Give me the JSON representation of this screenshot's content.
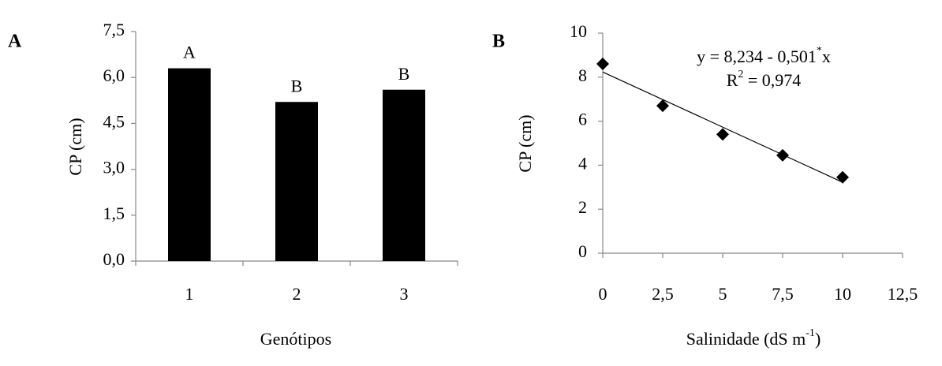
{
  "chart_data": [
    {
      "type": "bar",
      "panel_label": "A",
      "categories": [
        "1",
        "2",
        "3"
      ],
      "values": [
        6.3,
        5.2,
        5.6
      ],
      "color": "#000000",
      "letters": [
        "A",
        "B",
        "B"
      ],
      "y_label": "CP (cm)",
      "x_label": "Genótipos",
      "ylim": [
        0,
        7.5
      ],
      "yticks": [
        {
          "value": 0,
          "label": "0,0"
        },
        {
          "value": 1.5,
          "label": "1,5"
        },
        {
          "value": 3,
          "label": "3,0"
        },
        {
          "value": 4.5,
          "label": "4,5"
        },
        {
          "value": 6,
          "label": "6,0"
        },
        {
          "value": 7.5,
          "label": "7,5"
        }
      ]
    },
    {
      "type": "scatter",
      "panel_label": "B",
      "x": [
        0,
        2.5,
        5,
        7.5,
        10
      ],
      "values": [
        8.6,
        6.7,
        5.4,
        4.45,
        3.45
      ],
      "color": "#000000",
      "trendline": {
        "intercept": 8.234,
        "slope": -0.501
      },
      "equation": {
        "main": "y = 8,234 - 0,501",
        "sup": "*",
        "end": "x"
      },
      "r2": {
        "main": "R",
        "sup": "2",
        "end": " = 0,974"
      },
      "y_label": "CP (cm)",
      "x_label": {
        "main": "Salinidade (dS m",
        "sup": "-1",
        "end": ")"
      },
      "xlim": [
        0,
        12.5
      ],
      "xticks": [
        0,
        {
          "value": 2.5,
          "label": "2,5"
        },
        5,
        {
          "value": 7.5,
          "label": "7,5"
        },
        10,
        {
          "value": 12.5,
          "label": "12,5"
        }
      ],
      "ylim": [
        0,
        10
      ],
      "yticks": [
        0,
        2,
        4,
        6,
        8,
        10
      ]
    }
  ]
}
